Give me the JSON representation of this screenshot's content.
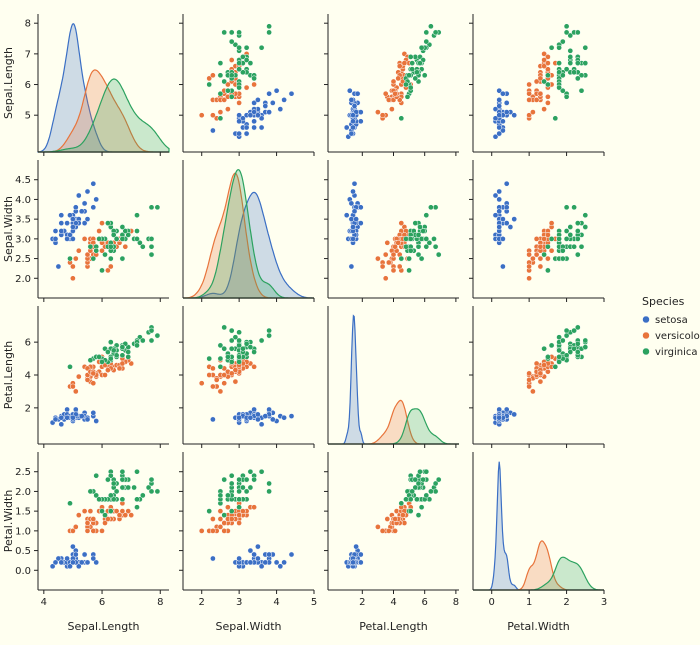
{
  "chart_data": {
    "type": "scatter",
    "variables": [
      "Sepal.Length",
      "Sepal.Width",
      "Petal.Length",
      "Petal.Width"
    ],
    "axes": {
      "Sepal.Length": {
        "range": [
          3.8,
          8.3
        ],
        "ticks": [
          4,
          6,
          8
        ],
        "row_ticks": [
          5,
          6,
          7,
          8
        ]
      },
      "Sepal.Width": {
        "range": [
          1.5,
          5.0
        ],
        "ticks": [
          2,
          3,
          4,
          5
        ],
        "row_ticks": [
          2.0,
          2.5,
          3.0,
          3.5,
          4.0,
          4.5
        ]
      },
      "Petal.Length": {
        "range": [
          -0.2,
          8.2
        ],
        "ticks": [
          2,
          4,
          6,
          8
        ],
        "row_ticks": [
          2,
          4,
          6
        ]
      },
      "Petal.Width": {
        "range": [
          -0.5,
          3.0
        ],
        "ticks": [
          0,
          1,
          2,
          3
        ],
        "row_ticks": [
          0.0,
          0.5,
          1.0,
          1.5,
          2.0,
          2.5
        ]
      }
    },
    "legend": {
      "title": "Species",
      "position": "right",
      "entries": [
        "setosa",
        "versicolor",
        "virginica"
      ]
    },
    "colors": {
      "setosa": "#3b6fc4",
      "versicolor": "#e8743b",
      "virginica": "#2ca25f"
    },
    "series": [
      {
        "name": "setosa",
        "points": [
          [
            5.1,
            3.5,
            1.4,
            0.2
          ],
          [
            4.9,
            3.0,
            1.4,
            0.2
          ],
          [
            4.7,
            3.2,
            1.3,
            0.2
          ],
          [
            4.6,
            3.1,
            1.5,
            0.2
          ],
          [
            5.0,
            3.6,
            1.4,
            0.2
          ],
          [
            5.4,
            3.9,
            1.7,
            0.4
          ],
          [
            4.6,
            3.4,
            1.4,
            0.3
          ],
          [
            5.0,
            3.4,
            1.5,
            0.2
          ],
          [
            4.4,
            2.9,
            1.4,
            0.2
          ],
          [
            4.9,
            3.1,
            1.5,
            0.1
          ],
          [
            5.4,
            3.7,
            1.5,
            0.2
          ],
          [
            4.8,
            3.4,
            1.6,
            0.2
          ],
          [
            4.8,
            3.0,
            1.4,
            0.1
          ],
          [
            4.3,
            3.0,
            1.1,
            0.1
          ],
          [
            5.8,
            4.0,
            1.2,
            0.2
          ],
          [
            5.7,
            4.4,
            1.5,
            0.4
          ],
          [
            5.4,
            3.9,
            1.3,
            0.4
          ],
          [
            5.1,
            3.5,
            1.4,
            0.3
          ],
          [
            5.7,
            3.8,
            1.7,
            0.3
          ],
          [
            5.1,
            3.8,
            1.5,
            0.3
          ],
          [
            5.4,
            3.4,
            1.7,
            0.2
          ],
          [
            5.1,
            3.7,
            1.5,
            0.4
          ],
          [
            4.6,
            3.6,
            1.0,
            0.2
          ],
          [
            5.1,
            3.3,
            1.7,
            0.5
          ],
          [
            4.8,
            3.4,
            1.9,
            0.2
          ],
          [
            5.0,
            3.0,
            1.6,
            0.2
          ],
          [
            5.0,
            3.4,
            1.6,
            0.4
          ],
          [
            5.2,
            3.5,
            1.5,
            0.2
          ],
          [
            5.2,
            3.4,
            1.4,
            0.2
          ],
          [
            4.7,
            3.2,
            1.6,
            0.2
          ],
          [
            4.8,
            3.1,
            1.6,
            0.2
          ],
          [
            5.4,
            3.4,
            1.5,
            0.4
          ],
          [
            5.2,
            4.1,
            1.5,
            0.1
          ],
          [
            5.5,
            4.2,
            1.4,
            0.2
          ],
          [
            4.9,
            3.1,
            1.5,
            0.2
          ],
          [
            5.0,
            3.2,
            1.2,
            0.2
          ],
          [
            5.5,
            3.5,
            1.3,
            0.2
          ],
          [
            4.9,
            3.6,
            1.4,
            0.1
          ],
          [
            4.4,
            3.0,
            1.3,
            0.2
          ],
          [
            5.1,
            3.4,
            1.5,
            0.2
          ],
          [
            5.0,
            3.5,
            1.3,
            0.3
          ],
          [
            4.5,
            2.3,
            1.3,
            0.3
          ],
          [
            4.4,
            3.2,
            1.3,
            0.2
          ],
          [
            5.0,
            3.5,
            1.6,
            0.6
          ],
          [
            5.1,
            3.8,
            1.9,
            0.4
          ],
          [
            4.8,
            3.0,
            1.4,
            0.3
          ],
          [
            5.1,
            3.8,
            1.6,
            0.2
          ],
          [
            4.6,
            3.2,
            1.4,
            0.2
          ],
          [
            5.3,
            3.7,
            1.5,
            0.2
          ],
          [
            5.0,
            3.3,
            1.4,
            0.2
          ]
        ]
      },
      {
        "name": "versicolor",
        "points": [
          [
            7.0,
            3.2,
            4.7,
            1.4
          ],
          [
            6.4,
            3.2,
            4.5,
            1.5
          ],
          [
            6.9,
            3.1,
            4.9,
            1.5
          ],
          [
            5.5,
            2.3,
            4.0,
            1.3
          ],
          [
            6.5,
            2.8,
            4.6,
            1.5
          ],
          [
            5.7,
            2.8,
            4.5,
            1.3
          ],
          [
            6.3,
            3.3,
            4.7,
            1.6
          ],
          [
            4.9,
            2.4,
            3.3,
            1.0
          ],
          [
            6.6,
            2.9,
            4.6,
            1.3
          ],
          [
            5.2,
            2.7,
            3.9,
            1.4
          ],
          [
            5.0,
            2.0,
            3.5,
            1.0
          ],
          [
            5.9,
            3.0,
            4.2,
            1.5
          ],
          [
            6.0,
            2.2,
            4.0,
            1.0
          ],
          [
            6.1,
            2.9,
            4.7,
            1.4
          ],
          [
            5.6,
            2.9,
            3.6,
            1.3
          ],
          [
            6.7,
            3.1,
            4.4,
            1.4
          ],
          [
            5.6,
            3.0,
            4.5,
            1.5
          ],
          [
            5.8,
            2.7,
            4.1,
            1.0
          ],
          [
            6.2,
            2.2,
            4.5,
            1.5
          ],
          [
            5.6,
            2.5,
            3.9,
            1.1
          ],
          [
            5.9,
            3.2,
            4.8,
            1.8
          ],
          [
            6.1,
            2.8,
            4.0,
            1.3
          ],
          [
            6.3,
            2.5,
            4.9,
            1.5
          ],
          [
            6.1,
            2.8,
            4.7,
            1.2
          ],
          [
            6.4,
            2.9,
            4.3,
            1.3
          ],
          [
            6.6,
            3.0,
            4.4,
            1.4
          ],
          [
            6.8,
            2.8,
            4.8,
            1.4
          ],
          [
            6.7,
            3.0,
            5.0,
            1.7
          ],
          [
            6.0,
            2.9,
            4.5,
            1.5
          ],
          [
            5.7,
            2.6,
            3.5,
            1.0
          ],
          [
            5.5,
            2.4,
            3.8,
            1.1
          ],
          [
            5.5,
            2.4,
            3.7,
            1.0
          ],
          [
            5.8,
            2.7,
            3.9,
            1.2
          ],
          [
            6.0,
            2.7,
            5.1,
            1.6
          ],
          [
            5.4,
            3.0,
            4.5,
            1.5
          ],
          [
            6.0,
            3.4,
            4.5,
            1.6
          ],
          [
            6.7,
            3.1,
            4.7,
            1.5
          ],
          [
            6.3,
            2.3,
            4.4,
            1.3
          ],
          [
            5.6,
            3.0,
            4.1,
            1.3
          ],
          [
            5.5,
            2.5,
            4.0,
            1.3
          ],
          [
            5.5,
            2.6,
            4.4,
            1.2
          ],
          [
            6.1,
            3.0,
            4.6,
            1.4
          ],
          [
            5.8,
            2.6,
            4.0,
            1.2
          ],
          [
            5.0,
            2.3,
            3.3,
            1.0
          ],
          [
            5.6,
            2.7,
            4.2,
            1.3
          ],
          [
            5.7,
            3.0,
            4.2,
            1.2
          ],
          [
            5.7,
            2.9,
            4.2,
            1.3
          ],
          [
            6.2,
            2.9,
            4.3,
            1.3
          ],
          [
            5.1,
            2.5,
            3.0,
            1.1
          ],
          [
            5.7,
            2.8,
            4.1,
            1.3
          ]
        ]
      },
      {
        "name": "virginica",
        "points": [
          [
            6.3,
            3.3,
            6.0,
            2.5
          ],
          [
            5.8,
            2.7,
            5.1,
            1.9
          ],
          [
            7.1,
            3.0,
            5.9,
            2.1
          ],
          [
            6.3,
            2.9,
            5.6,
            1.8
          ],
          [
            6.5,
            3.0,
            5.8,
            2.2
          ],
          [
            7.6,
            3.0,
            6.6,
            2.1
          ],
          [
            4.9,
            2.5,
            4.5,
            1.7
          ],
          [
            7.3,
            2.9,
            6.3,
            1.8
          ],
          [
            6.7,
            2.5,
            5.8,
            1.8
          ],
          [
            7.2,
            3.6,
            6.1,
            2.5
          ],
          [
            6.5,
            3.2,
            5.1,
            2.0
          ],
          [
            6.4,
            2.7,
            5.3,
            1.9
          ],
          [
            6.8,
            3.0,
            5.5,
            2.1
          ],
          [
            5.7,
            2.5,
            5.0,
            2.0
          ],
          [
            5.8,
            2.8,
            5.1,
            2.4
          ],
          [
            6.4,
            3.2,
            5.3,
            2.3
          ],
          [
            6.5,
            3.0,
            5.5,
            1.8
          ],
          [
            7.7,
            3.8,
            6.7,
            2.2
          ],
          [
            7.7,
            2.6,
            6.9,
            2.3
          ],
          [
            6.0,
            2.2,
            5.0,
            1.5
          ],
          [
            6.9,
            3.2,
            5.7,
            2.3
          ],
          [
            5.6,
            2.8,
            4.9,
            2.0
          ],
          [
            7.7,
            2.8,
            6.7,
            2.0
          ],
          [
            6.3,
            2.7,
            4.9,
            1.8
          ],
          [
            6.7,
            3.3,
            5.7,
            2.1
          ],
          [
            7.2,
            3.2,
            6.0,
            1.8
          ],
          [
            6.2,
            2.8,
            4.8,
            1.8
          ],
          [
            6.1,
            3.0,
            4.9,
            1.8
          ],
          [
            6.4,
            2.8,
            5.6,
            2.1
          ],
          [
            7.2,
            3.0,
            5.8,
            1.6
          ],
          [
            7.4,
            2.8,
            6.1,
            1.9
          ],
          [
            7.9,
            3.8,
            6.4,
            2.0
          ],
          [
            6.4,
            2.8,
            5.6,
            2.2
          ],
          [
            6.3,
            2.8,
            5.1,
            1.5
          ],
          [
            6.1,
            2.6,
            5.6,
            1.4
          ],
          [
            7.7,
            3.0,
            6.1,
            2.3
          ],
          [
            6.3,
            3.4,
            5.6,
            2.4
          ],
          [
            6.4,
            3.1,
            5.5,
            1.8
          ],
          [
            6.0,
            3.0,
            4.8,
            1.8
          ],
          [
            6.9,
            3.1,
            5.4,
            2.1
          ],
          [
            6.7,
            3.1,
            5.6,
            2.4
          ],
          [
            6.9,
            3.1,
            5.1,
            2.3
          ],
          [
            5.8,
            2.7,
            5.1,
            1.9
          ],
          [
            6.8,
            3.2,
            5.9,
            2.3
          ],
          [
            6.7,
            3.3,
            5.7,
            2.5
          ],
          [
            6.7,
            3.0,
            5.2,
            2.3
          ],
          [
            6.3,
            2.5,
            5.0,
            1.9
          ],
          [
            6.5,
            3.0,
            5.2,
            2.0
          ],
          [
            6.2,
            3.4,
            5.4,
            2.3
          ],
          [
            5.9,
            3.0,
            5.1,
            1.8
          ]
        ]
      }
    ]
  }
}
